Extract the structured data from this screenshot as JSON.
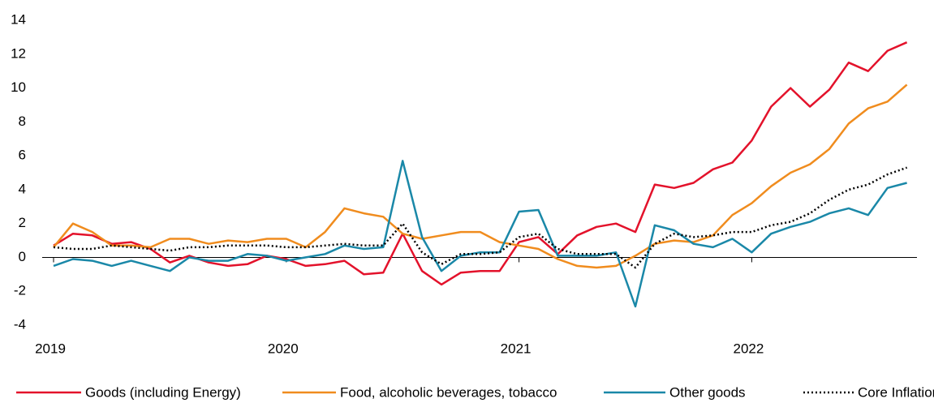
{
  "chart_data": {
    "type": "line",
    "categories": [
      "2019",
      null,
      null,
      null,
      null,
      null,
      null,
      null,
      null,
      null,
      null,
      null,
      "2020",
      null,
      null,
      null,
      null,
      null,
      null,
      null,
      null,
      null,
      null,
      null,
      "2021",
      null,
      null,
      null,
      null,
      null,
      null,
      null,
      null,
      null,
      null,
      null,
      "2022",
      null,
      null,
      null,
      null,
      null,
      null,
      null,
      null
    ],
    "series": [
      {
        "name": "Goods (including Energy)",
        "color": "#e3122b",
        "style": "solid",
        "values": [
          0.7,
          1.4,
          1.3,
          0.8,
          0.9,
          0.5,
          -0.3,
          0.1,
          -0.3,
          -0.5,
          -0.4,
          0.1,
          -0.1,
          -0.5,
          -0.4,
          -0.2,
          -1.0,
          -0.9,
          1.4,
          -0.8,
          -1.6,
          -0.9,
          -0.8,
          -0.8,
          0.9,
          1.2,
          0.2,
          1.3,
          1.8,
          2.0,
          1.5,
          4.3,
          4.1,
          4.4,
          5.2,
          5.6,
          6.9,
          8.9,
          10.0,
          8.9,
          9.9,
          11.5,
          11.0,
          12.2,
          12.7
        ]
      },
      {
        "name": "Food, alcoholic beverages, tobacco",
        "color": "#f08c1e",
        "style": "solid",
        "values": [
          0.6,
          2.0,
          1.5,
          0.7,
          0.7,
          0.6,
          1.1,
          1.1,
          0.8,
          1.0,
          0.9,
          1.1,
          1.1,
          0.6,
          1.5,
          2.9,
          2.6,
          2.4,
          1.4,
          1.1,
          1.3,
          1.5,
          1.5,
          0.9,
          0.7,
          0.5,
          -0.1,
          -0.5,
          -0.6,
          -0.5,
          0.1,
          0.8,
          1.0,
          0.9,
          1.3,
          2.5,
          3.2,
          4.2,
          5.0,
          5.5,
          6.4,
          7.9,
          8.8,
          9.2,
          10.2
        ]
      },
      {
        "name": "Other goods",
        "color": "#1a88a8",
        "style": "solid",
        "values": [
          -0.5,
          -0.1,
          -0.2,
          -0.5,
          -0.2,
          -0.5,
          -0.8,
          0.0,
          -0.2,
          -0.2,
          0.2,
          0.1,
          -0.2,
          0.0,
          0.2,
          0.7,
          0.5,
          0.6,
          5.7,
          1.2,
          -0.8,
          0.1,
          0.3,
          0.3,
          2.7,
          2.8,
          0.1,
          0.1,
          0.1,
          0.3,
          -2.9,
          1.9,
          1.6,
          0.8,
          0.6,
          1.1,
          0.3,
          1.4,
          1.8,
          2.1,
          2.6,
          2.9,
          2.5,
          4.1,
          4.4
        ]
      },
      {
        "name": "Core Inflation",
        "color": "#000000",
        "style": "dotted",
        "values": [
          0.6,
          0.5,
          0.5,
          0.7,
          0.6,
          0.5,
          0.4,
          0.6,
          0.6,
          0.7,
          0.7,
          0.7,
          0.6,
          0.6,
          0.7,
          0.8,
          0.7,
          0.7,
          2.0,
          0.3,
          -0.4,
          0.2,
          0.2,
          0.3,
          1.2,
          1.4,
          0.5,
          0.2,
          0.2,
          0.2,
          -0.6,
          0.8,
          1.4,
          1.2,
          1.3,
          1.5,
          1.5,
          1.9,
          2.1,
          2.6,
          3.4,
          4.0,
          4.3,
          4.9,
          5.3
        ]
      }
    ],
    "ylim": [
      -4,
      14
    ],
    "yticks": [
      -4,
      -2,
      0,
      2,
      4,
      6,
      8,
      10,
      12,
      14
    ],
    "grid": false,
    "legend": "bottom"
  }
}
